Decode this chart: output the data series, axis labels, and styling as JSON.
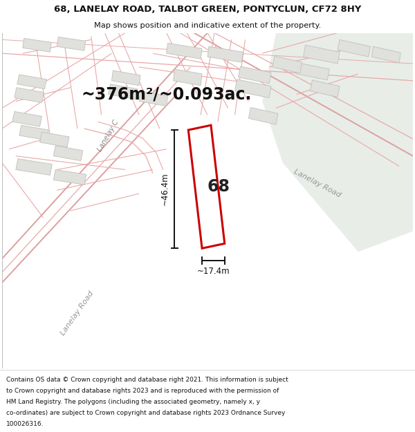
{
  "title": "68, LANELAY ROAD, TALBOT GREEN, PONTYCLUN, CF72 8HY",
  "subtitle": "Map shows position and indicative extent of the property.",
  "area_text": "~376m²/~0.093ac.",
  "property_label": "68",
  "dim_width": "~17.4m",
  "dim_height": "~46.4m",
  "road_label_left": "Lanelay C",
  "road_label_bl": "Lanelay Road",
  "road_label_right": "Lanelay Road",
  "footer_lines": [
    "Contains OS data © Crown copyright and database right 2021. This information is subject",
    "to Crown copyright and database rights 2023 and is reproduced with the permission of",
    "HM Land Registry. The polygons (including the associated geometry, namely x, y",
    "co-ordinates) are subject to Crown copyright and database rights 2023 Ordnance Survey",
    "100026316."
  ],
  "map_bg": "#f7f7f5",
  "road_color": "#e8a8a8",
  "road_color_main": "#dda0a0",
  "plot_fill": "#e0e0dd",
  "plot_edge": "#c0c0bc",
  "green_fill": "#e8ede8",
  "property_color": "#cc0000",
  "dim_color": "#111111",
  "text_color": "#555555"
}
